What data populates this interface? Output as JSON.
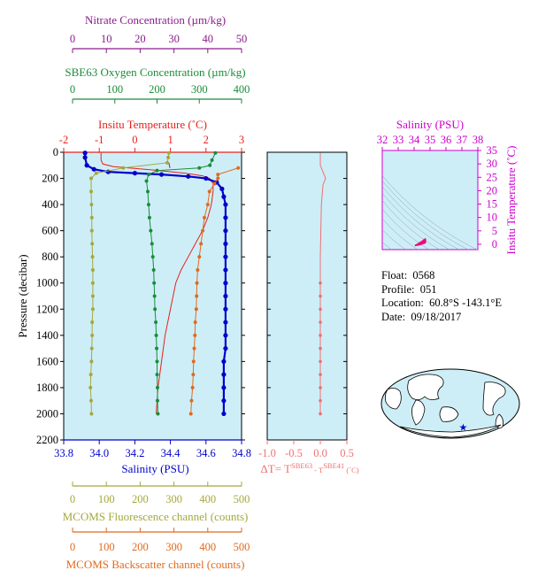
{
  "info": {
    "float_label": "Float:",
    "float": "0568",
    "profile_label": "Profile:",
    "profile": "051",
    "location_label": "Location:",
    "location": "60.8°S  -143.1°E",
    "date_label": "Date:",
    "date": "09/18/2017"
  },
  "colors": {
    "temperature": "#e8201c",
    "salinity": "#0000cc",
    "oxygen": "#1a8c3a",
    "nitrate": "#8b1a8b",
    "fluorescence": "#a5a83c",
    "backscatter": "#e06a1e",
    "delta_t": "#f07070",
    "ts_axis": "#cc00cc",
    "plot_bg": "#cdeef7"
  },
  "chart_data": [
    {
      "type": "line",
      "id": "main-profile",
      "ylabel": "Pressure (decibar)",
      "ylim": [
        0,
        2200
      ],
      "yticks": [
        "0",
        "200",
        "400",
        "600",
        "800",
        "1000",
        "1200",
        "1400",
        "1600",
        "1800",
        "2000",
        "2200"
      ],
      "axes": {
        "nitrate": {
          "label": "Nitrate Concentration (µm/kg)",
          "range": [
            0,
            50
          ],
          "ticks": [
            "0",
            "10",
            "20",
            "30",
            "40",
            "50"
          ]
        },
        "oxygen": {
          "label": "SBE63 Oxygen Concentration (µm/kg)",
          "range": [
            0,
            400
          ],
          "ticks": [
            "0",
            "100",
            "200",
            "300",
            "400"
          ]
        },
        "temperature": {
          "label": "Insitu Temperature (˚C)",
          "range": [
            -2,
            3
          ],
          "ticks": [
            "-2",
            "-1",
            "0",
            "1",
            "2",
            "3"
          ]
        },
        "salinity": {
          "label": "Salinity (PSU)",
          "range": [
            33.8,
            34.8
          ],
          "ticks": [
            "33.8",
            "34.0",
            "34.2",
            "34.4",
            "34.6",
            "34.8"
          ]
        },
        "fluorescence": {
          "label": "MCOMS Fluorescence channel (counts)",
          "range": [
            0,
            500
          ],
          "ticks": [
            "0",
            "100",
            "200",
            "300",
            "400",
            "500"
          ]
        },
        "backscatter": {
          "label": "MCOMS Backscatter channel (counts)",
          "range": [
            0,
            500
          ],
          "ticks": [
            "0",
            "100",
            "200",
            "300",
            "400",
            "500"
          ]
        }
      },
      "series": [
        {
          "key": "temperature",
          "markers": false,
          "points": [
            [
              -0.95,
              5
            ],
            [
              -0.95,
              60
            ],
            [
              -0.9,
              90
            ],
            [
              -0.6,
              110
            ],
            [
              0.5,
              135
            ],
            [
              1.4,
              160
            ],
            [
              1.9,
              180
            ],
            [
              2.1,
              200
            ],
            [
              2.2,
              240
            ],
            [
              2.2,
              300
            ],
            [
              2.15,
              400
            ],
            [
              2.05,
              500
            ],
            [
              1.9,
              600
            ],
            [
              1.7,
              700
            ],
            [
              1.5,
              800
            ],
            [
              1.3,
              900
            ],
            [
              1.15,
              1000
            ],
            [
              1.0,
              1200
            ],
            [
              0.85,
              1400
            ],
            [
              0.75,
              1600
            ],
            [
              0.65,
              1800
            ],
            [
              0.6,
              2000
            ]
          ]
        },
        {
          "key": "salinity",
          "markers": true,
          "points": [
            [
              33.92,
              5
            ],
            [
              33.92,
              40
            ],
            [
              33.93,
              100
            ],
            [
              33.97,
              130
            ],
            [
              34.05,
              150
            ],
            [
              34.2,
              160
            ],
            [
              34.35,
              170
            ],
            [
              34.5,
              185
            ],
            [
              34.6,
              200
            ],
            [
              34.66,
              230
            ],
            [
              34.69,
              280
            ],
            [
              34.7,
              340
            ],
            [
              34.71,
              400
            ],
            [
              34.71,
              500
            ],
            [
              34.71,
              600
            ],
            [
              34.71,
              700
            ],
            [
              34.71,
              800
            ],
            [
              34.71,
              900
            ],
            [
              34.71,
              1000
            ],
            [
              34.71,
              1100
            ],
            [
              34.71,
              1200
            ],
            [
              34.71,
              1300
            ],
            [
              34.71,
              1400
            ],
            [
              34.71,
              1500
            ],
            [
              34.7,
              1600
            ],
            [
              34.7,
              1700
            ],
            [
              34.7,
              1800
            ],
            [
              34.7,
              1900
            ],
            [
              34.7,
              2000
            ]
          ]
        },
        {
          "key": "oxygen",
          "markers": true,
          "points": [
            [
              338,
              5
            ],
            [
              330,
              60
            ],
            [
              325,
              100
            ],
            [
              300,
              120
            ],
            [
              200,
              140
            ],
            [
              180,
              170
            ],
            [
              175,
              220
            ],
            [
              178,
              300
            ],
            [
              180,
              400
            ],
            [
              182,
              500
            ],
            [
              185,
              600
            ],
            [
              188,
              700
            ],
            [
              190,
              800
            ],
            [
              192,
              900
            ],
            [
              193,
              1000
            ],
            [
              194,
              1100
            ],
            [
              195,
              1200
            ],
            [
              197,
              1300
            ],
            [
              198,
              1400
            ],
            [
              199,
              1500
            ],
            [
              200,
              1600
            ],
            [
              200,
              1700
            ],
            [
              201,
              1800
            ],
            [
              201,
              1900
            ],
            [
              202,
              2000
            ]
          ]
        },
        {
          "key": "nitrate",
          "markers": false,
          "points": [
            [
              28.5,
              80
            ],
            [
              28.8,
              120
            ]
          ]
        },
        {
          "key": "fluorescence",
          "markers": true,
          "points": [
            [
              285,
              5
            ],
            [
              283,
              40
            ],
            [
              280,
              80
            ],
            [
              150,
              120
            ],
            [
              70,
              160
            ],
            [
              55,
              200
            ],
            [
              55,
              300
            ],
            [
              56,
              400
            ],
            [
              57,
              500
            ],
            [
              57,
              600
            ],
            [
              58,
              700
            ],
            [
              59,
              800
            ],
            [
              60,
              900
            ],
            [
              60,
              1000
            ],
            [
              60,
              1100
            ],
            [
              60,
              1200
            ],
            [
              58,
              1300
            ],
            [
              58,
              1400
            ],
            [
              57,
              1500
            ],
            [
              56,
              1600
            ],
            [
              54,
              1700
            ],
            [
              53,
              1800
            ],
            [
              55,
              1900
            ],
            [
              56,
              2000
            ]
          ]
        },
        {
          "key": "backscatter",
          "markers": true,
          "points": [
            [
              490,
              120
            ],
            [
              430,
              170
            ],
            [
              430,
              200
            ],
            [
              420,
              240
            ],
            [
              405,
              300
            ],
            [
              400,
              400
            ],
            [
              390,
              500
            ],
            [
              385,
              600
            ],
            [
              380,
              700
            ],
            [
              375,
              800
            ],
            [
              370,
              900
            ],
            [
              368,
              1000
            ],
            [
              367,
              1100
            ],
            [
              366,
              1200
            ],
            [
              363,
              1300
            ],
            [
              362,
              1400
            ],
            [
              360,
              1500
            ],
            [
              358,
              1600
            ],
            [
              357,
              1700
            ],
            [
              355,
              1800
            ],
            [
              352,
              1900
            ],
            [
              350,
              2000
            ]
          ]
        }
      ]
    },
    {
      "type": "line",
      "id": "delta-t",
      "xlabel": "ΔT= T",
      "xlabel_sup1": "SBE63",
      "xlabel_mid": " - T",
      "xlabel_sup2": "SBE41",
      "xlabel_unit": " (˚C)",
      "xlim": [
        -1.0,
        0.5
      ],
      "xticks": [
        "-1.0",
        "-0.5",
        "0.0",
        "0.5"
      ],
      "ylim": [
        0,
        2200
      ],
      "series": [
        {
          "name": "",
          "points": [
            [
              0.0,
              5
            ],
            [
              0.0,
              100
            ],
            [
              0.05,
              150
            ],
            [
              0.1,
              200
            ],
            [
              0.05,
              250
            ],
            [
              0.02,
              400
            ],
            [
              0.01,
              600
            ],
            [
              0.0,
              800
            ],
            [
              0.0,
              1000
            ],
            [
              0.0,
              1100
            ],
            [
              0.0,
              1200
            ],
            [
              0.0,
              1300
            ],
            [
              0.0,
              1400
            ],
            [
              0.0,
              1500
            ],
            [
              0.0,
              1600
            ],
            [
              0.0,
              1700
            ],
            [
              0.0,
              1800
            ],
            [
              0.0,
              1900
            ],
            [
              0.0,
              2000
            ]
          ]
        }
      ]
    },
    {
      "type": "scatter",
      "id": "ts-diagram",
      "xlabel": "Salinity (PSU)",
      "xlim": [
        32,
        38
      ],
      "xticks": [
        "32",
        "33",
        "34",
        "35",
        "36",
        "37",
        "38"
      ],
      "ylabel": "Insitu Temperature (˚C)",
      "ylim": [
        -2,
        35
      ],
      "yticks": [
        "0",
        "5",
        "10",
        "15",
        "20",
        "25",
        "30",
        "35"
      ],
      "series": [
        {
          "name": "",
          "points": [
            [
              34.05,
              -0.5
            ],
            [
              34.2,
              0.0
            ],
            [
              34.35,
              0.6
            ],
            [
              34.5,
              1.1
            ],
            [
              34.6,
              1.6
            ],
            [
              34.7,
              2.0
            ],
            [
              34.72,
              1.6
            ],
            [
              34.71,
              0.8
            ],
            [
              34.7,
              0.5
            ],
            [
              34.4,
              -0.1
            ]
          ]
        }
      ]
    }
  ]
}
